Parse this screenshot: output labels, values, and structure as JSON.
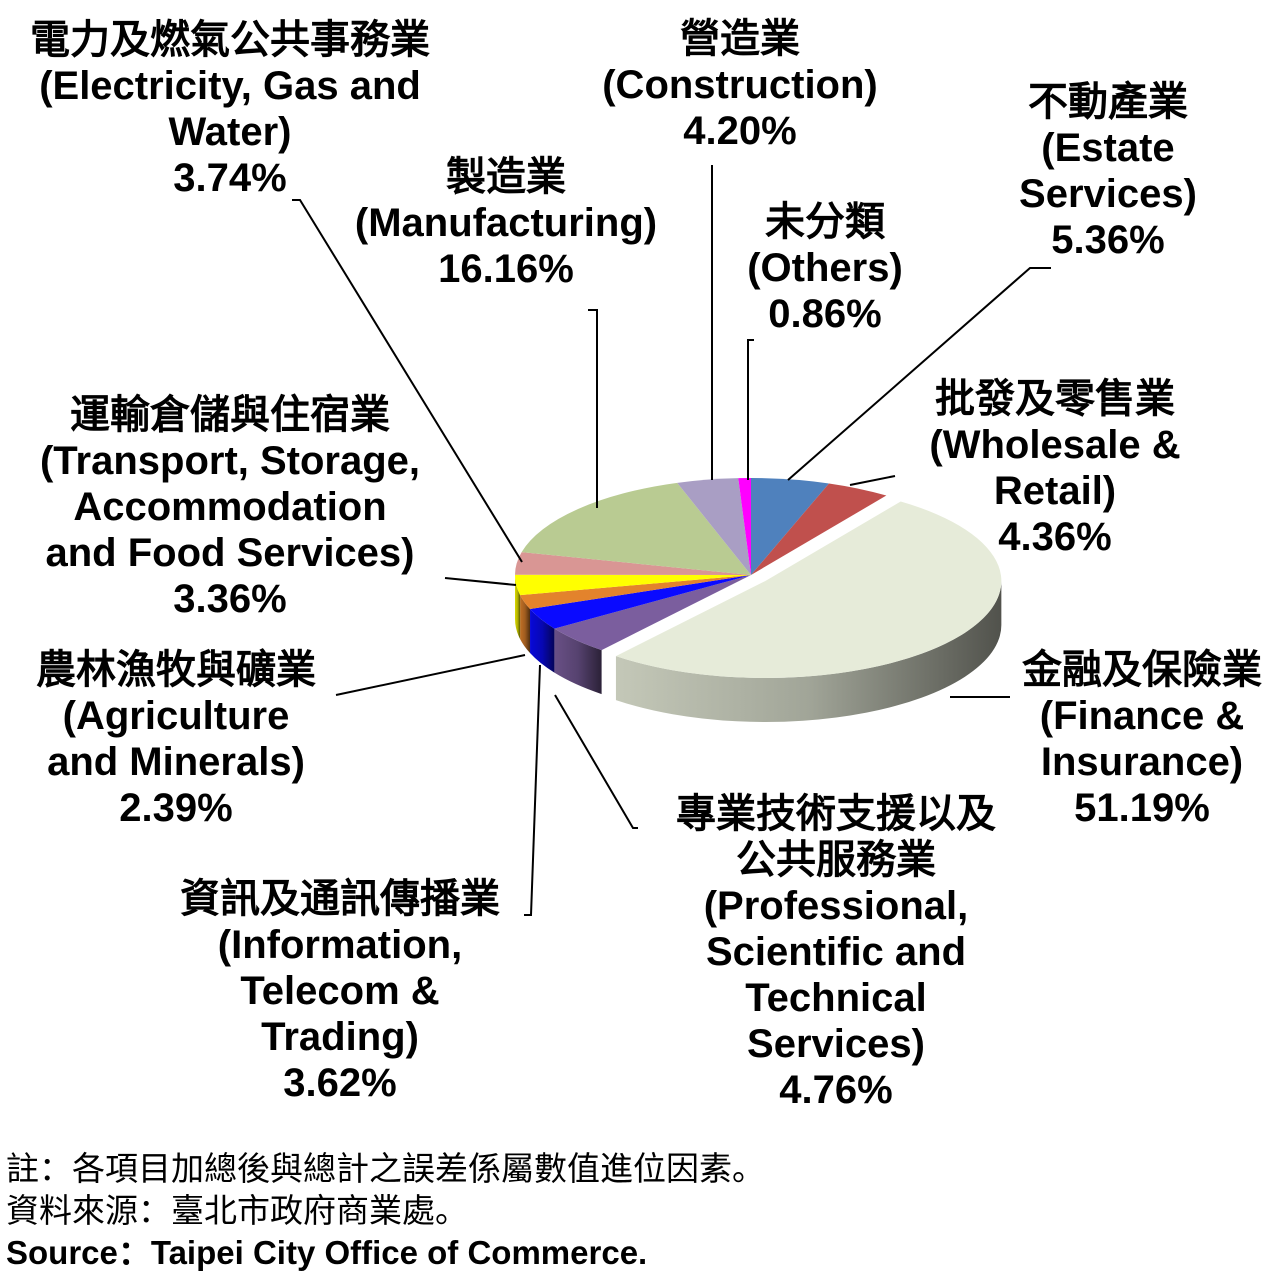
{
  "chart_data": {
    "type": "pie",
    "style": "3d-exploded",
    "slices": [
      {
        "zh": "不動產業",
        "en": [
          "(Estate",
          "Services)"
        ],
        "pct": "5.36%",
        "value": 5.36,
        "color": "#4f81bd"
      },
      {
        "zh": "批發及零售業",
        "en": [
          "(Wholesale &",
          "Retail)"
        ],
        "pct": "4.36%",
        "value": 4.36,
        "color": "#c0504d"
      },
      {
        "zh": "金融及保險業",
        "en": [
          "(Finance &",
          "Insurance)"
        ],
        "pct": "51.19%",
        "value": 51.19,
        "color": "#e6ebd9"
      },
      {
        "zh": "專業技術支援以及|公共服務業",
        "en": [
          "(Professional,",
          "Scientific and",
          "Technical",
          "Services)"
        ],
        "pct": "4.76%",
        "value": 4.76,
        "color": "#7b5e9e"
      },
      {
        "zh": "資訊及通訊傳播業",
        "en": [
          "(Information,",
          "Telecom &",
          "Trading)"
        ],
        "pct": "3.62%",
        "value": 3.62,
        "color": "#0a0aff"
      },
      {
        "zh": "農林漁牧與礦業",
        "en": [
          "(Agriculture",
          "and Minerals)"
        ],
        "pct": "2.39%",
        "value": 2.39,
        "color": "#e3832c"
      },
      {
        "zh": "運輸倉儲與住宿業",
        "en": [
          "(Transport, Storage,",
          "Accommodation",
          "and Food Services)"
        ],
        "pct": "3.36%",
        "value": 3.36,
        "color": "#ffff00"
      },
      {
        "zh": "電力及燃氣公共事務業",
        "en": [
          "(Electricity, Gas and",
          "Water)"
        ],
        "pct": "3.74%",
        "value": 3.74,
        "color": "#d99694"
      },
      {
        "zh": "製造業",
        "en": [
          "(Manufacturing)"
        ],
        "pct": "16.16%",
        "value": 16.16,
        "color": "#b9cb92"
      },
      {
        "zh": "營造業",
        "en": [
          "(Construction)"
        ],
        "pct": "4.20%",
        "value": 4.2,
        "color": "#a99ec4"
      },
      {
        "zh": "未分類",
        "en": [
          "(Others)"
        ],
        "pct": "0.86%",
        "value": 0.86,
        "color": "#ff00ff"
      }
    ]
  },
  "notes": {
    "note": "註：各項目加總後與總計之誤差係屬數值進位因素。",
    "source_zh": "資料來源：臺北市政府商業處。",
    "source_en": "Source：Taipei City Office of Commerce."
  }
}
